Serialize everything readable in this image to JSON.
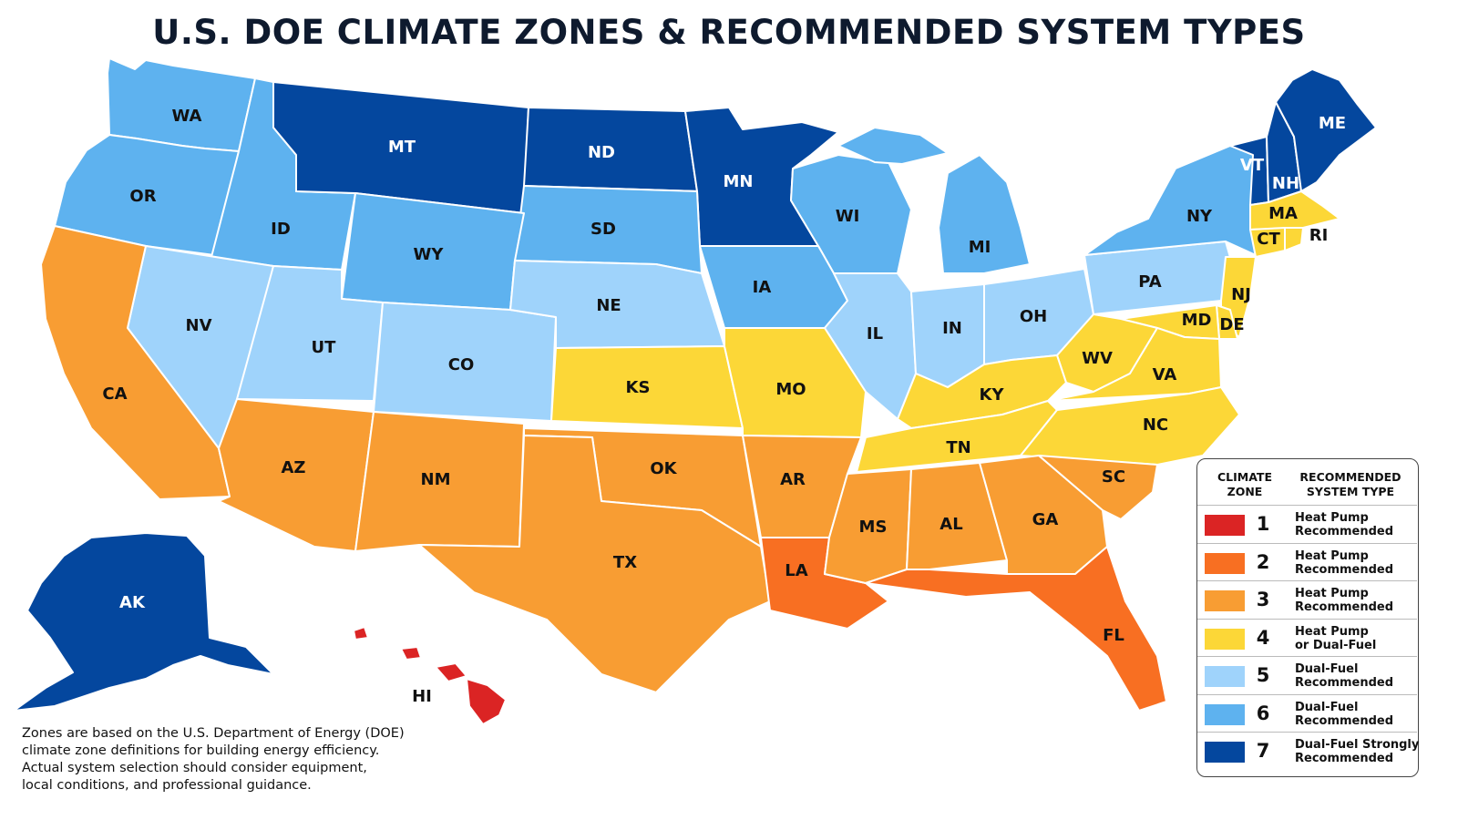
{
  "title": "U.S. DOE CLIMATE ZONES & RECOMMENDED SYSTEM TYPES",
  "zone_colors": {
    "1": "#db2424",
    "2": "#f86f22",
    "3": "#f89d33",
    "4": "#fcd737",
    "5": "#9fd3fb",
    "6": "#5eb2ef",
    "7": "#04479e"
  },
  "states": {
    "WA": {
      "label": "WA",
      "zone": 6
    },
    "OR": {
      "label": "OR",
      "zone": 6
    },
    "ID": {
      "label": "ID",
      "zone": 6
    },
    "MT": {
      "label": "MT",
      "zone": 7
    },
    "ND": {
      "label": "ND",
      "zone": 7
    },
    "MN": {
      "label": "MN",
      "zone": 7
    },
    "WI": {
      "label": "WI",
      "zone": 6
    },
    "MI": {
      "label": "MI",
      "zone": 6
    },
    "SD": {
      "label": "SD",
      "zone": 6
    },
    "WY": {
      "label": "WY",
      "zone": 6
    },
    "NV": {
      "label": "NV",
      "zone": 5
    },
    "UT": {
      "label": "UT",
      "zone": 5
    },
    "CO": {
      "label": "CO",
      "zone": 5
    },
    "NE": {
      "label": "NE",
      "zone": 5
    },
    "IA": {
      "label": "IA",
      "zone": 6
    },
    "IL": {
      "label": "IL",
      "zone": 5
    },
    "IN": {
      "label": "IN",
      "zone": 5
    },
    "OH": {
      "label": "OH",
      "zone": 5
    },
    "PA": {
      "label": "PA",
      "zone": 5
    },
    "NY": {
      "label": "NY",
      "zone": 6
    },
    "VT": {
      "label": "VT",
      "zone": 7
    },
    "NH": {
      "label": "NH",
      "zone": 7
    },
    "ME": {
      "label": "ME",
      "zone": 7
    },
    "MA": {
      "label": "MA",
      "zone": 4
    },
    "CT": {
      "label": "CT",
      "zone": 4
    },
    "RI": {
      "label": "RI",
      "zone": 4
    },
    "NJ": {
      "label": "NJ",
      "zone": 4
    },
    "DE": {
      "label": "DE",
      "zone": 4
    },
    "MD": {
      "label": "MD",
      "zone": 4
    },
    "WV": {
      "label": "WV",
      "zone": 4
    },
    "VA": {
      "label": "VA",
      "zone": 4
    },
    "KY": {
      "label": "KY",
      "zone": 4
    },
    "KS": {
      "label": "KS",
      "zone": 4
    },
    "MO": {
      "label": "MO",
      "zone": 4
    },
    "TN": {
      "label": "TN",
      "zone": 4
    },
    "NC": {
      "label": "NC",
      "zone": 4
    },
    "CA": {
      "label": "CA",
      "zone": 3
    },
    "AZ": {
      "label": "AZ",
      "zone": 3
    },
    "NM": {
      "label": "NM",
      "zone": 3
    },
    "OK": {
      "label": "OK",
      "zone": 3
    },
    "TX": {
      "label": "TX",
      "zone": 3
    },
    "AR": {
      "label": "AR",
      "zone": 3
    },
    "LA": {
      "label": "LA",
      "zone": 2
    },
    "MS": {
      "label": "MS",
      "zone": 3
    },
    "AL": {
      "label": "AL",
      "zone": 3
    },
    "GA": {
      "label": "GA",
      "zone": 3
    },
    "SC": {
      "label": "SC",
      "zone": 3
    },
    "FL": {
      "label": "FL",
      "zone": 2
    },
    "AK": {
      "label": "AK",
      "zone": 7
    },
    "HI": {
      "label": "HI",
      "zone": 1
    }
  },
  "legend": {
    "header_zone": [
      "CLIMATE",
      "ZONE"
    ],
    "header_system": [
      "RECOMMENDED",
      "SYSTEM TYPE"
    ],
    "rows": [
      {
        "zone": "1",
        "color": "#db2424",
        "line1": "Heat Pump",
        "line2": "Recommended"
      },
      {
        "zone": "2",
        "color": "#f86f22",
        "line1": "Heat Pump",
        "line2": "Recommended"
      },
      {
        "zone": "3",
        "color": "#f89d33",
        "line1": "Heat Pump",
        "line2": "Recommended"
      },
      {
        "zone": "4",
        "color": "#fcd737",
        "line1": "Heat Pump",
        "line2": "or Dual-Fuel"
      },
      {
        "zone": "5",
        "color": "#9fd3fb",
        "line1": "Dual-Fuel",
        "line2": "Recommended"
      },
      {
        "zone": "6",
        "color": "#5eb2ef",
        "line1": "Dual-Fuel",
        "line2": "Recommended"
      },
      {
        "zone": "7",
        "color": "#04479e",
        "line1": "Dual-Fuel Strongly",
        "line2": "Recommended"
      }
    ]
  },
  "footnote": [
    "Zones are based on the U.S. Department of Energy (DOE)",
    "climate zone definitions for building energy efficiency.",
    "Actual system selection should consider equipment,",
    "local conditions, and professional guidance."
  ]
}
